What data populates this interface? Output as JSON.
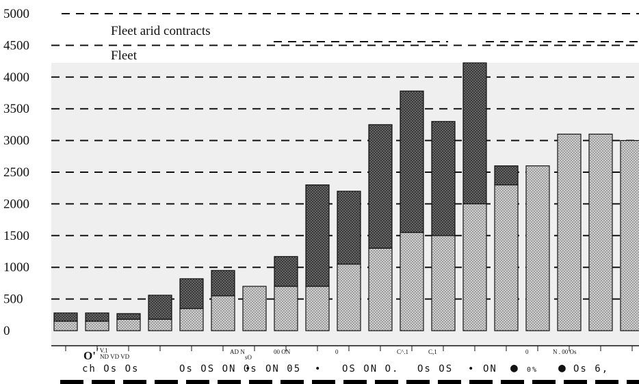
{
  "chart_data": {
    "type": "bar",
    "stacked": true,
    "yticks": [
      "5000",
      "4500",
      "4000",
      "3500",
      "3000",
      "2500",
      "2000",
      "1500",
      "1000",
      "500",
      "0"
    ],
    "ylim": [
      0,
      5000
    ],
    "grid": true,
    "legend": {
      "placement": "top-left",
      "entries": [
        "Fleet arid contracts",
        "Fleet"
      ]
    },
    "series": [
      {
        "name": "Fleet",
        "color": "#b5b5b5",
        "values": [
          150,
          150,
          180,
          180,
          350,
          550,
          700,
          700,
          700,
          1050,
          1300,
          1550,
          1500,
          2000,
          2300,
          2600,
          3100,
          3100,
          3000
        ]
      },
      {
        "name": "Fleet arid contracts",
        "color": "#555555",
        "values": [
          130,
          130,
          90,
          380,
          470,
          400,
          0,
          470,
          1600,
          1150,
          1950,
          2230,
          1800,
          2300,
          300,
          0,
          0,
          0,
          0
        ]
      }
    ],
    "xlabel_fragments": [
      "O'",
      "' V.1",
      "ND VD VD",
      "AD N",
      "sO",
      "00 ON",
      "0",
      "C^.1",
      "C,1",
      "0",
      "N . 00 Os"
    ],
    "xlabel_row": [
      "ch Os Os",
      "Os OS ON Os",
      "•",
      "ON 05",
      "•",
      "OS ON O.",
      "Os OS",
      "•",
      "ON",
      "●",
      "0%",
      "●",
      "Os 6,"
    ]
  }
}
